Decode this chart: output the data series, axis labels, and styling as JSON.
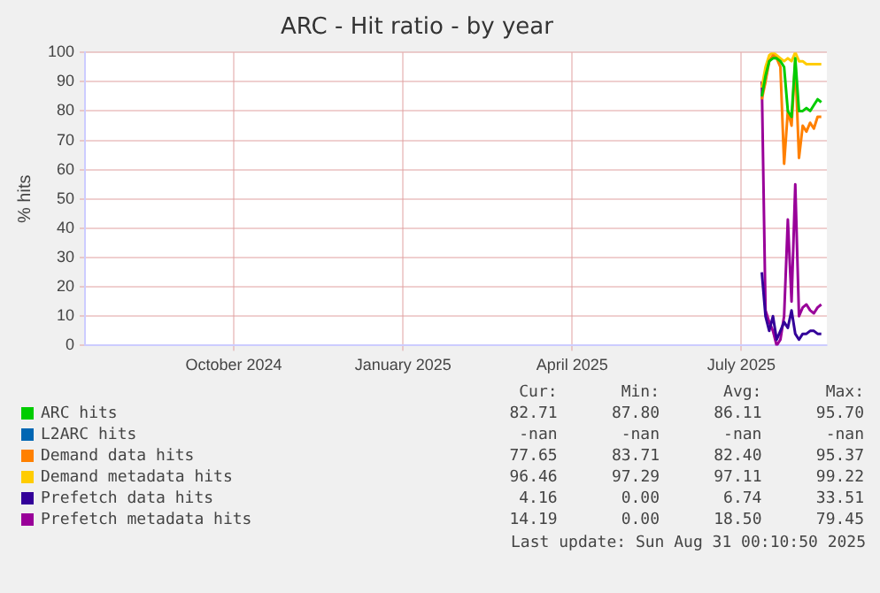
{
  "chart_data": {
    "type": "line",
    "title": "ARC - Hit ratio - by year",
    "ylabel": "% hits",
    "x": [
      "2025-07-27",
      "2025-07-29",
      "2025-07-31",
      "2025-08-02",
      "2025-08-04",
      "2025-08-06",
      "2025-08-08",
      "2025-08-10",
      "2025-08-12",
      "2025-08-14",
      "2025-08-16",
      "2025-08-18",
      "2025-08-20",
      "2025-08-22",
      "2025-08-24",
      "2025-08-26",
      "2025-08-28"
    ],
    "xlim": [
      "2024-07-28",
      "2025-08-31"
    ],
    "xticks": [
      {
        "value": "2024-10-16",
        "label": "October 2024"
      },
      {
        "value": "2025-01-15",
        "label": "January 2025"
      },
      {
        "value": "2025-04-16",
        "label": "April 2025"
      },
      {
        "value": "2025-07-16",
        "label": "July 2025"
      }
    ],
    "ylim": [
      0,
      100
    ],
    "yticks": [
      0,
      10,
      20,
      30,
      40,
      50,
      60,
      70,
      80,
      90,
      100
    ],
    "grid": true,
    "legend": "bottom",
    "marker": "none",
    "series": [
      {
        "name": "ARC hits",
        "color": "#00cc00",
        "values": [
          85,
          92,
          97,
          98,
          98,
          97,
          95,
          80,
          78,
          98,
          80,
          80,
          81,
          80,
          82,
          84,
          83
        ]
      },
      {
        "name": "L2ARC hits",
        "color": "#0066b3",
        "values": [
          null,
          null,
          null,
          null,
          null,
          null,
          null,
          null,
          null,
          null,
          null,
          null,
          null,
          null,
          null,
          null,
          null
        ]
      },
      {
        "name": "Demand data hits",
        "color": "#ff8000",
        "values": [
          84,
          90,
          97,
          99,
          98,
          95,
          62,
          80,
          75,
          97,
          64,
          75,
          73,
          76,
          74,
          78,
          78
        ]
      },
      {
        "name": "Demand metadata hits",
        "color": "#ffcc00",
        "values": [
          88,
          95,
          99,
          100,
          99,
          98,
          97,
          98,
          97,
          100,
          97,
          97,
          96,
          96,
          96,
          96,
          96
        ]
      },
      {
        "name": "Prefetch data hits",
        "color": "#330099",
        "values": [
          25,
          10,
          5,
          10,
          2,
          5,
          8,
          6,
          12,
          4,
          2,
          4,
          4,
          5,
          5,
          4,
          4
        ]
      },
      {
        "name": "Prefetch metadata hits",
        "color": "#990099",
        "values": [
          90,
          12,
          8,
          5,
          0,
          2,
          10,
          43,
          15,
          55,
          10,
          13,
          14,
          12,
          11,
          13,
          14
        ]
      }
    ],
    "annotations": [
      "Cur:",
      "Min:",
      "Avg:",
      "Max:",
      "82.71",
      "87.80",
      "86.11",
      "95.70",
      "-nan",
      "-nan",
      "-nan",
      "-nan",
      "77.65",
      "83.71",
      "82.40",
      "95.37",
      "96.46",
      "97.29",
      "97.11",
      "99.22",
      "4.16",
      "0.00",
      "6.74",
      "33.51",
      "14.19",
      "0.00",
      "18.50",
      "79.45",
      "Last update: Sun Aug 31 00:10:50 2025"
    ]
  }
}
